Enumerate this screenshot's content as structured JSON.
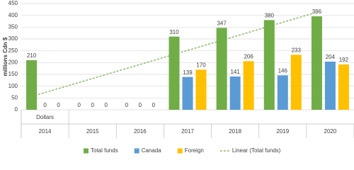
{
  "chart_data": {
    "type": "bar",
    "y_label": "millions Cdn $",
    "x_group_label": "Dollars",
    "categories": [
      "2014",
      "2015",
      "2016",
      "2017",
      "2018",
      "2019",
      "2020"
    ],
    "series": [
      {
        "name": "Total funds",
        "color": "#70ad47",
        "values": [
          210,
          0,
          0,
          310,
          347,
          380,
          396
        ]
      },
      {
        "name": "Canada",
        "color": "#5b9bd5",
        "values": [
          0,
          0,
          0,
          139,
          141,
          146,
          204
        ]
      },
      {
        "name": "Foreign",
        "color": "#ffc000",
        "values": [
          0,
          0,
          0,
          170,
          206,
          233,
          192
        ]
      }
    ],
    "trendline": {
      "name": "Linear (Total funds)",
      "color": "#70ad47",
      "dashed": true
    },
    "ylim": [
      0,
      450
    ],
    "yticks": [
      0,
      50,
      100,
      150,
      200,
      250,
      300,
      350,
      400,
      450
    ],
    "grid": true,
    "legend": "bottom"
  }
}
